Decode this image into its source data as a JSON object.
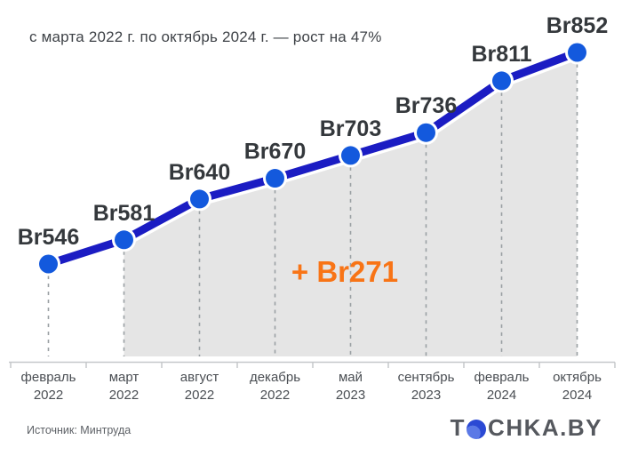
{
  "title": "с марта 2022 г. по октябрь 2024 г. — рост на 47%",
  "chart_data": {
    "type": "line",
    "title": "с марта 2022 г. по октябрь 2024 г. — рост на 47%",
    "currency_prefix": "Br",
    "categories": [
      {
        "month": "февраль",
        "year": "2022"
      },
      {
        "month": "март",
        "year": "2022"
      },
      {
        "month": "август",
        "year": "2022"
      },
      {
        "month": "декабрь",
        "year": "2022"
      },
      {
        "month": "май",
        "year": "2023"
      },
      {
        "month": "сентябрь",
        "year": "2023"
      },
      {
        "month": "февраль",
        "year": "2024"
      },
      {
        "month": "октябрь",
        "year": "2024"
      }
    ],
    "values": [
      546,
      581,
      640,
      670,
      703,
      736,
      811,
      852
    ],
    "point_labels": [
      "Br546",
      "Br581",
      "Br640",
      "Br670",
      "Br703",
      "Br736",
      "Br811",
      "Br852"
    ],
    "annotation": "+ Br271",
    "shaded_range": {
      "from_index": 1,
      "to_index": 7
    },
    "ylim": [
      546,
      852
    ],
    "grid": false,
    "legend": false
  },
  "footer": {
    "source": "Источник: Минтруда",
    "logo_prefix": "T",
    "logo_suffix": "CHKA.BY"
  },
  "colors": {
    "line": "#1b1cc3",
    "line_halo": "#ffffff",
    "point": "#1359dd",
    "point_ring": "#ffffff",
    "area": "#e5e5e5",
    "annotation": "#f87416",
    "dashed_guide": "#9aa0a3",
    "axis": "#c6c8ca",
    "label_text": "#34383c"
  }
}
